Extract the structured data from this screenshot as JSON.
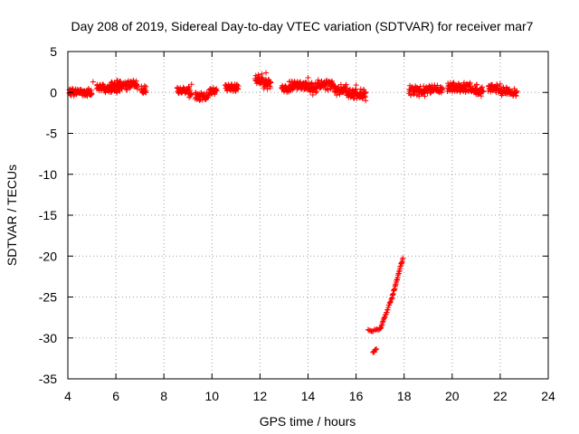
{
  "chart_data": {
    "type": "scatter",
    "title": "Day 208 of 2019, Sidereal Day-to-day VTEC variation (SDTVAR) for receiver mar7",
    "xlabel": "GPS time / hours",
    "ylabel": "SDTVAR / TECUs",
    "xlim": [
      4,
      24
    ],
    "ylim": [
      -35,
      5
    ],
    "xticks": [
      4,
      6,
      8,
      10,
      12,
      14,
      16,
      18,
      20,
      22,
      24
    ],
    "yticks": [
      5,
      0,
      -5,
      -10,
      -15,
      -20,
      -25,
      -30,
      -35
    ],
    "grid": true,
    "marker": "plus",
    "color": "#ff0000",
    "segments": [
      {
        "x0": 4.05,
        "x1": 5.0,
        "y": 0.0,
        "spread": 0.45
      },
      {
        "x0": 5.2,
        "x1": 5.5,
        "y": 0.6,
        "spread": 0.4
      },
      {
        "x0": 5.5,
        "x1": 6.2,
        "y": 0.4,
        "spread": 0.5
      },
      {
        "x0": 5.8,
        "x1": 6.9,
        "y": 0.9,
        "spread": 0.55
      },
      {
        "x0": 7.05,
        "x1": 7.25,
        "y": 0.3,
        "spread": 0.5
      },
      {
        "x0": 8.55,
        "x1": 9.0,
        "y": 0.2,
        "spread": 0.4
      },
      {
        "x0": 9.0,
        "x1": 9.15,
        "y": 0.0,
        "spread": 0.7
      },
      {
        "x0": 9.3,
        "x1": 9.9,
        "y": -0.5,
        "spread": 0.5
      },
      {
        "x0": 9.9,
        "x1": 10.2,
        "y": 0.2,
        "spread": 0.4
      },
      {
        "x0": 10.55,
        "x1": 11.1,
        "y": 0.6,
        "spread": 0.45
      },
      {
        "x0": 11.8,
        "x1": 12.1,
        "y": 1.6,
        "spread": 0.6
      },
      {
        "x0": 12.1,
        "x1": 12.45,
        "y": 1.0,
        "spread": 0.6
      },
      {
        "x0": 12.9,
        "x1": 13.2,
        "y": 0.4,
        "spread": 0.4
      },
      {
        "x0": 13.2,
        "x1": 13.9,
        "y": 0.8,
        "spread": 0.6
      },
      {
        "x0": 13.9,
        "x1": 14.4,
        "y": 0.6,
        "spread": 0.6
      },
      {
        "x0": 14.4,
        "x1": 15.1,
        "y": 0.9,
        "spread": 0.55
      },
      {
        "x0": 15.1,
        "x1": 15.6,
        "y": 0.3,
        "spread": 0.6
      },
      {
        "x0": 15.6,
        "x1": 16.4,
        "y": -0.2,
        "spread": 0.6
      },
      {
        "x0": 18.2,
        "x1": 18.9,
        "y": 0.2,
        "spread": 0.6
      },
      {
        "x0": 18.9,
        "x1": 19.6,
        "y": 0.4,
        "spread": 0.45
      },
      {
        "x0": 19.8,
        "x1": 20.8,
        "y": 0.6,
        "spread": 0.6
      },
      {
        "x0": 20.8,
        "x1": 21.0,
        "y": 0.2,
        "spread": 0.5
      },
      {
        "x0": 21.0,
        "x1": 21.3,
        "y": 0.3,
        "spread": 0.7
      },
      {
        "x0": 21.5,
        "x1": 22.0,
        "y": 0.5,
        "spread": 0.5
      },
      {
        "x0": 22.0,
        "x1": 22.7,
        "y": 0.1,
        "spread": 0.5
      }
    ],
    "trend": [
      {
        "x0": 16.5,
        "y0": -29.1,
        "x1": 17.0,
        "y1": -29.0,
        "n": 12
      },
      {
        "x0": 16.7,
        "y0": -31.8,
        "x1": 16.85,
        "y1": -31.3,
        "n": 6
      },
      {
        "x0": 17.0,
        "y0": -29.0,
        "x1": 17.5,
        "y1": -25.0,
        "n": 26
      },
      {
        "x0": 17.5,
        "y0": -25.0,
        "x1": 17.95,
        "y1": -20.2,
        "n": 30
      }
    ],
    "points": [
      {
        "x": 7.25,
        "y": 0.7
      },
      {
        "x": 7.25,
        "y": 0.0
      },
      {
        "x": 6.85,
        "y": 1.0
      },
      {
        "x": 9.15,
        "y": 1.0
      },
      {
        "x": 9.5,
        "y": -0.9
      },
      {
        "x": 9.05,
        "y": -0.6
      },
      {
        "x": 13.0,
        "y": 0.2
      },
      {
        "x": 14.0,
        "y": 1.8
      },
      {
        "x": 14.2,
        "y": -0.3
      },
      {
        "x": 16.4,
        "y": -1.0
      },
      {
        "x": 16.0,
        "y": 0.9
      },
      {
        "x": 12.25,
        "y": 2.4
      },
      {
        "x": 11.95,
        "y": 1.2
      },
      {
        "x": 5.05,
        "y": 1.3
      }
    ]
  }
}
